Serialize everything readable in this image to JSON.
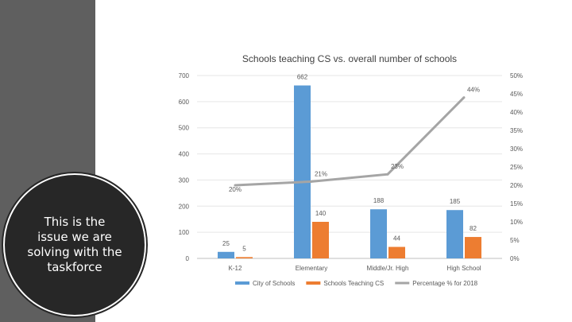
{
  "side_panel": {
    "callout": "This is the issue we are solving with the taskforce"
  },
  "chart_data": {
    "type": "bar",
    "title": "Schools teaching CS vs. overall number of schools",
    "categories": [
      "K-12",
      "Elementary",
      "Middle/Jr. High",
      "High School"
    ],
    "series": [
      {
        "name": "City of Schools",
        "type": "bar",
        "axis": "left",
        "color": "#5b9bd5",
        "values": [
          25,
          662,
          188,
          185
        ],
        "labels": [
          "25",
          "662",
          "188",
          "185"
        ]
      },
      {
        "name": "Schools Teaching CS",
        "type": "bar",
        "axis": "left",
        "color": "#ed7d31",
        "values": [
          5,
          140,
          44,
          82
        ],
        "labels": [
          "5",
          "140",
          "44",
          "82"
        ]
      },
      {
        "name": "Percentage % for 2018",
        "type": "line",
        "axis": "right",
        "color": "#a5a5a5",
        "values": [
          20,
          21,
          23,
          44
        ],
        "labels": [
          "20%",
          "21%",
          "23%",
          "44%"
        ]
      }
    ],
    "left_axis": {
      "ylim": [
        0,
        700
      ],
      "ticks": [
        "0",
        "100",
        "200",
        "300",
        "400",
        "500",
        "600",
        "700"
      ]
    },
    "right_axis": {
      "ylim": [
        0,
        50
      ],
      "ticks": [
        "0%",
        "5%",
        "10%",
        "15%",
        "20%",
        "25%",
        "30%",
        "35%",
        "40%",
        "45%",
        "50%"
      ]
    },
    "grid": true,
    "legend_position": "bottom"
  }
}
